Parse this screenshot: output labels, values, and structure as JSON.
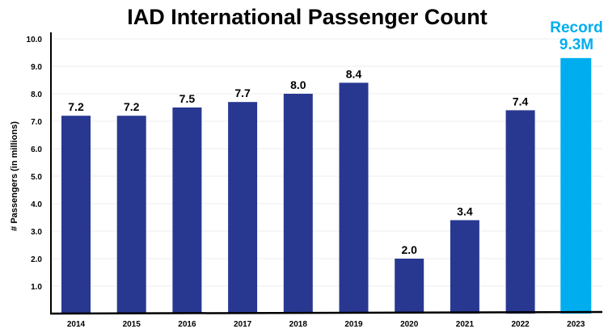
{
  "chart_data": {
    "type": "bar",
    "title": "IAD International Passenger Count",
    "xlabel": "",
    "ylabel": "# Passengers (in millions)",
    "ylim": [
      0,
      10.0
    ],
    "yticks": [
      "1.0",
      "2.0",
      "3.0",
      "4.0",
      "5.0",
      "6.0",
      "7.0",
      "8.0",
      "9.0",
      "10.0"
    ],
    "grid": true,
    "categories": [
      "2014",
      "2015",
      "2016",
      "2017",
      "2018",
      "2019",
      "2020",
      "2021",
      "2022",
      "2023"
    ],
    "values": [
      7.2,
      7.2,
      7.5,
      7.7,
      8.0,
      8.4,
      2.0,
      3.4,
      7.4,
      9.3
    ],
    "data_labels": [
      "7.2",
      "7.2",
      "7.5",
      "7.7",
      "8.0",
      "8.4",
      "2.0",
      "3.4",
      "7.4",
      ""
    ],
    "highlight": {
      "category": "2023",
      "label_line1": "Record",
      "label_line2": "9.3M"
    },
    "colors": {
      "bar": "#283891",
      "highlight": "#00aeef"
    }
  }
}
